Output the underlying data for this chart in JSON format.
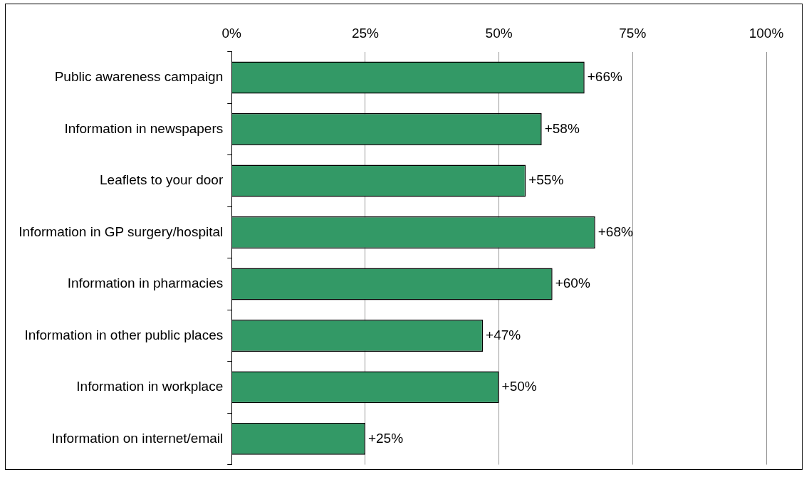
{
  "chart_data": {
    "type": "bar",
    "orientation": "horizontal",
    "categories": [
      "Public awareness campaign",
      "Information in newspapers",
      "Leaflets to your door",
      "Information in GP surgery/hospital",
      "Information in pharmacies",
      "Information in other public places",
      "Information in workplace",
      "Information on internet/email"
    ],
    "values": [
      66,
      58,
      55,
      68,
      60,
      47,
      50,
      25
    ],
    "value_labels": [
      "+66%",
      "+58%",
      "+55%",
      "+68%",
      "+60%",
      "+47%",
      "+50%",
      "+25%"
    ],
    "color": "#339966",
    "xlim": [
      0,
      100
    ],
    "xticks": [
      {
        "value": 0,
        "label": "0%"
      },
      {
        "value": 25,
        "label": "25%"
      },
      {
        "value": 50,
        "label": "50%"
      },
      {
        "value": 75,
        "label": "75%"
      },
      {
        "value": 100,
        "label": "100%"
      }
    ],
    "grid": "x",
    "legend": false
  }
}
